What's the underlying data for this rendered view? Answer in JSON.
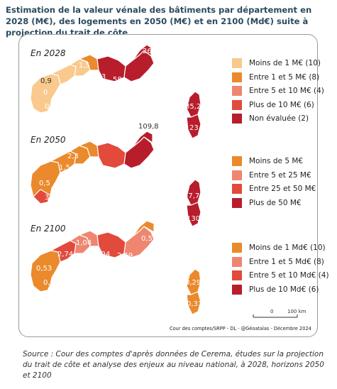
{
  "title": "Estimation de la valeur vénale des bâtiments par département en 2028 (M€), des logements en 2050 (M€) et en 2100 (Md€) suite à projection du trait de côte",
  "colors": {
    "c1": "#f9c98d",
    "c2": "#ea8a2c",
    "c3": "#ef8670",
    "c4": "#e24a3b",
    "c5": "#b81d2c"
  },
  "periods": [
    {
      "label": "En 2028",
      "legend": [
        {
          "label": "Moins de 1 M€  (10)",
          "color": "#f9c98d"
        },
        {
          "label": "Entre 1 et 5 M€ (8)",
          "color": "#ea8a2c"
        },
        {
          "label": "Entre 5 et 10 M€ (4)",
          "color": "#ef8670"
        },
        {
          "label": "Plus de 10 M€ (6)",
          "color": "#e24a3b"
        },
        {
          "label": "Non évaluée (2)",
          "color": "#b81d2c"
        }
      ],
      "values": [
        "0,9",
        "1,5",
        "0",
        "0,7",
        "11,3",
        "58",
        "26,1",
        "35,2",
        "23"
      ]
    },
    {
      "label": "En 2050",
      "legend": [
        {
          "label": "Moins de 5 M€",
          "color": "#ea8a2c"
        },
        {
          "label": "Entre 5 et 25 M€",
          "color": "#ef8670"
        },
        {
          "label": "Entre 25 et 50 M€",
          "color": "#e24a3b"
        },
        {
          "label": "Plus de 50 M€",
          "color": "#b81d2c"
        }
      ],
      "values": [
        "2,3",
        "1,5",
        "0,5",
        "34",
        "49,2",
        "198,6",
        "109,8",
        "57,7",
        "130"
      ]
    },
    {
      "label": "En 2100",
      "legend": [
        {
          "label": "Moins de 1 Md€  (10)",
          "color": "#ea8a2c"
        },
        {
          "label": "Entre 1 et 5 Md€ (8)",
          "color": "#ef8670"
        },
        {
          "label": "Entre 5 et 10 Md€ (4)",
          "color": "#e24a3b"
        },
        {
          "label": "Plus de 10 Md€ (6)",
          "color": "#b81d2c"
        }
      ],
      "values": [
        "1,04",
        "2,74",
        "1,94",
        "2,69",
        "0,52",
        "0,53",
        "0,5",
        "0,29",
        "0,31"
      ]
    }
  ],
  "scale": {
    "zero": "0",
    "label": "100 km"
  },
  "credit": "Cour des comptes/SRPP - DL - @Géoatalas - Décembre 2024",
  "source": "Source : Cour des comptes d'après données de Cerema, études sur la projection du trait de côte et analyse des enjeux au niveau national, à 2028, horizons 2050 et 2100"
}
